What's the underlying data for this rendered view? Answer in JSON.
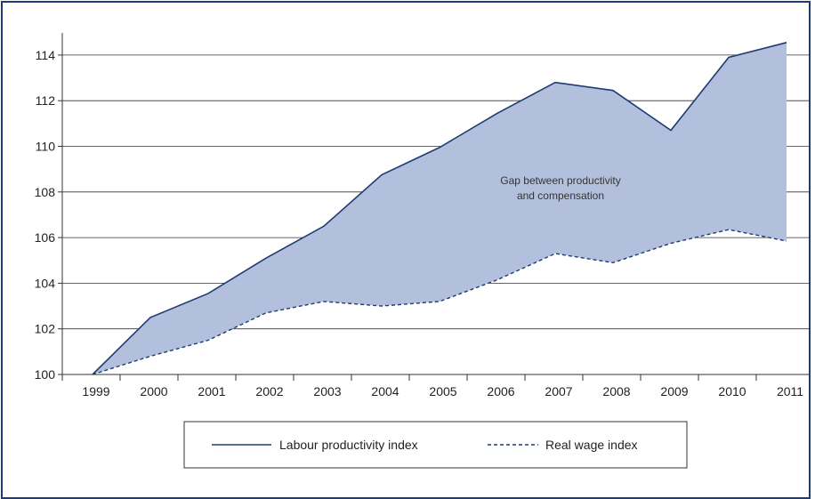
{
  "chart_data": {
    "type": "area",
    "x": [
      "1999",
      "2000",
      "2001",
      "2002",
      "2003",
      "2004",
      "2005",
      "2006",
      "2007",
      "2008",
      "2009",
      "2010",
      "2011"
    ],
    "series": [
      {
        "name": "Labour productivity index",
        "style": "solid",
        "values": [
          100.0,
          102.5,
          103.55,
          105.1,
          106.5,
          108.75,
          109.95,
          111.45,
          112.8,
          112.45,
          110.7,
          113.9,
          114.55
        ]
      },
      {
        "name": "Real wage index",
        "style": "dashed",
        "values": [
          100.0,
          100.8,
          101.5,
          102.7,
          103.2,
          103.0,
          103.2,
          104.15,
          105.3,
          104.9,
          105.75,
          106.35,
          105.85
        ]
      }
    ],
    "ylim": [
      100,
      115
    ],
    "yticks": [
      "100",
      "102",
      "104",
      "106",
      "108",
      "110",
      "112",
      "114"
    ],
    "grid": "horizontal",
    "annotation": [
      "Gap between productivity",
      "and compensation"
    ],
    "legend_position": "bottom",
    "colors": {
      "line": "#1f3b73",
      "fill": "#b3c0dd",
      "frame": "#1f3b73"
    }
  }
}
